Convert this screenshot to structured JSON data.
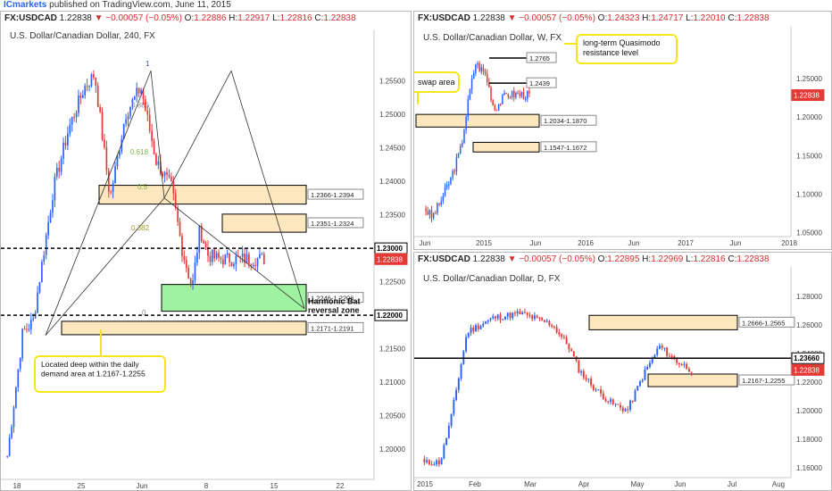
{
  "header": {
    "publisher": "ICmarkets",
    "published_text": " published on TradingView.com, June 11, 2015"
  },
  "colors": {
    "up": "#2962ff",
    "down": "#e53935",
    "zone_fill": "#fbe3b4",
    "green_zone_fill": "#8ef08e",
    "callout_border": "#f5e61a",
    "price_tag": "#e53935"
  },
  "panels": {
    "h4": {
      "symbol": "FX:USDCAD",
      "price": "1.22838",
      "change": "▼ −0.00057 (−0.05%)",
      "o": "1.22886",
      "h": "1.22917",
      "l": "1.22816",
      "c": "1.22838",
      "title": "U.S. Dollar/Canadian Dollar, 240, FX"
    },
    "weekly": {
      "symbol": "FX:USDCAD",
      "price": "1.22838",
      "change": "▼ −0.00057 (−0.05%)",
      "o": "1.24323",
      "h": "1.24717",
      "l": "1.22010",
      "c": "1.22838",
      "title": "U.S. Dollar/Canadian Dollar, W, FX"
    },
    "daily": {
      "symbol": "FX:USDCAD",
      "price": "1.22838",
      "change": "▼ −0.00057 (−0.05%)",
      "o": "1.22895",
      "h": "1.22969",
      "l": "1.22816",
      "c": "1.22838",
      "title": "U.S. Dollar/Canadian Dollar, D, FX"
    }
  },
  "chart_data": [
    {
      "id": "h4",
      "type": "candlestick",
      "ylim": [
        1.1955,
        1.26
      ],
      "y_ticks": [
        "1.25500",
        "1.25000",
        "1.24500",
        "1.24000",
        "1.23500",
        "1.23000",
        "1.22500",
        "1.22000",
        "1.21500",
        "1.21000",
        "1.20500",
        "1.20000"
      ],
      "x_ticks": [
        "18",
        "25",
        "Jun",
        "8",
        "15",
        "22"
      ],
      "price_labels": [
        {
          "text": "1.23000",
          "value": 1.23,
          "style": "black"
        },
        {
          "text": "1.22838",
          "value": 1.22838,
          "style": "red"
        },
        {
          "text": "1.22000",
          "value": 1.22,
          "style": "black"
        }
      ],
      "zones": [
        {
          "label": "1.2366-1.2394",
          "low": 1.2366,
          "high": 1.2394,
          "fill": "tan"
        },
        {
          "label": "1.2351-1.2324",
          "low": 1.2324,
          "high": 1.2351,
          "fill": "tan"
        },
        {
          "label": "1.2246-1.2206",
          "low": 1.2206,
          "high": 1.2246,
          "fill": "green"
        },
        {
          "label": "1.2171-1.2191",
          "low": 1.2171,
          "high": 1.2191,
          "fill": "tan"
        }
      ],
      "dashed_levels": [
        1.23,
        1.22
      ],
      "fib_labels": [
        "1",
        "0.886",
        "0.618",
        "0.5",
        "0.382",
        "0"
      ],
      "annotations": [
        "Harmonic Bat reversal zone",
        "Located deep within the daily demand area at 1.2167-1.2255"
      ]
    },
    {
      "id": "weekly",
      "type": "candlestick",
      "ylim": [
        1.045,
        1.295
      ],
      "y_ticks": [
        "1.25000",
        "1.20000",
        "1.15000",
        "1.10000",
        "1.05000"
      ],
      "x_ticks": [
        "Jun",
        "2015",
        "Jun",
        "2016",
        "Jun",
        "2017",
        "Jun",
        "2018"
      ],
      "price_labels": [
        {
          "text": "1.22838",
          "value": 1.22838,
          "style": "red"
        }
      ],
      "zones": [
        {
          "label": "1.2034-1.1870",
          "low": 1.187,
          "high": 1.2034,
          "fill": "tan"
        },
        {
          "label": "1.1547-1.1672",
          "low": 1.1547,
          "high": 1.1672,
          "fill": "tan"
        }
      ],
      "levels": [
        {
          "label": "1.2765",
          "value": 1.2765
        },
        {
          "label": "1.2439",
          "value": 1.2439
        }
      ],
      "annotations": [
        "long-term Quasimodo resistance level",
        "swap area"
      ]
    },
    {
      "id": "daily",
      "type": "candlestick",
      "ylim": [
        1.153,
        1.288
      ],
      "y_ticks": [
        "1.28000",
        "1.26000",
        "1.24000",
        "1.22000",
        "1.20000",
        "1.18000",
        "1.16000"
      ],
      "x_ticks": [
        "2015",
        "Feb",
        "Mar",
        "Apr",
        "May",
        "Jun",
        "Jul",
        "Aug"
      ],
      "price_labels": [
        {
          "text": "1.23660",
          "value": 1.2366,
          "style": "black"
        },
        {
          "text": "1.22838",
          "value": 1.22838,
          "style": "red"
        }
      ],
      "zones": [
        {
          "label": "1.2666-1.2565",
          "low": 1.2565,
          "high": 1.2666,
          "fill": "tan"
        },
        {
          "label": "1.2167-1.2255",
          "low": 1.2167,
          "high": 1.2255,
          "fill": "tan"
        }
      ],
      "levels": [
        {
          "label": "1.23660",
          "value": 1.2366
        }
      ]
    }
  ]
}
